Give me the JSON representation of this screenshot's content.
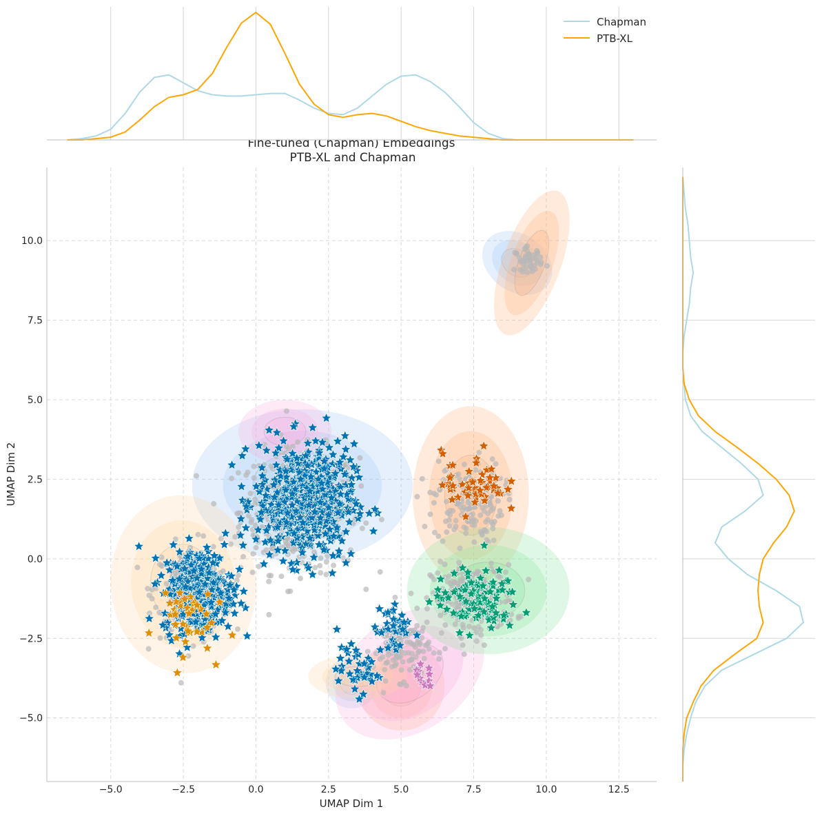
{
  "chart_data": {
    "type": "scatter",
    "title": "Fine-tuned (Chapman) Embeddings",
    "subtitle": "PTB-XL and Chapman",
    "xlabel": "UMAP Dim 1",
    "ylabel": "UMAP Dim 2",
    "xlim": [
      -7.2,
      13.8
    ],
    "ylim": [
      -7.0,
      12.3
    ],
    "x_ticks": [
      -5.0,
      -2.5,
      0.0,
      2.5,
      5.0,
      7.5,
      10.0,
      12.5
    ],
    "x_tick_labels": [
      "−5.0",
      "−2.5",
      "0.0",
      "2.5",
      "5.0",
      "7.5",
      "10.0",
      "12.5"
    ],
    "y_ticks": [
      -5.0,
      -2.5,
      0.0,
      2.5,
      5.0,
      7.5,
      10.0
    ],
    "y_tick_labels": [
      "−5.0",
      "−2.5",
      "0.0",
      "2.5",
      "5.0",
      "7.5",
      "10.0"
    ],
    "grid": true,
    "legend": {
      "placement": "top-right",
      "entries": [
        "Chapman",
        "PTB-XL"
      ]
    },
    "colors": {
      "Chapman": "#add8e6",
      "PTB-XL": "#ffa500",
      "grey_points": "#b8b8b8",
      "star_blue": "#0173b2",
      "star_orange": "#de8f05",
      "star_green": "#029e73",
      "star_red": "#d55e00",
      "star_pink": "#cc78bc",
      "grid": "#cfcfcf",
      "spine": "#bdbdbd",
      "text": "#262626"
    },
    "marginal_x": {
      "x": [
        -6.5,
        -6.0,
        -5.5,
        -5.0,
        -4.5,
        -4.0,
        -3.5,
        -3.0,
        -2.5,
        -2.0,
        -1.5,
        -1.0,
        -0.5,
        0.0,
        0.5,
        1.0,
        1.5,
        2.0,
        2.5,
        3.0,
        3.5,
        4.0,
        4.5,
        5.0,
        5.5,
        6.0,
        6.5,
        7.0,
        7.5,
        8.0,
        8.5,
        9.0,
        9.5,
        10.0,
        10.5,
        11.0,
        11.5,
        12.0,
        12.5,
        13.0
      ],
      "series": [
        {
          "name": "Chapman",
          "values": [
            0.0,
            0.01,
            0.03,
            0.08,
            0.2,
            0.36,
            0.47,
            0.49,
            0.43,
            0.37,
            0.34,
            0.33,
            0.33,
            0.34,
            0.35,
            0.35,
            0.3,
            0.24,
            0.2,
            0.19,
            0.24,
            0.33,
            0.42,
            0.48,
            0.49,
            0.44,
            0.36,
            0.25,
            0.13,
            0.05,
            0.01,
            0.0,
            0.0,
            0.0,
            0.0,
            0.0,
            0.0,
            0.0,
            0.0,
            0.0
          ]
        },
        {
          "name": "PTB-XL",
          "values": [
            0.0,
            0.0,
            0.01,
            0.02,
            0.06,
            0.15,
            0.25,
            0.32,
            0.34,
            0.38,
            0.5,
            0.7,
            0.88,
            0.96,
            0.87,
            0.65,
            0.42,
            0.27,
            0.19,
            0.17,
            0.19,
            0.2,
            0.18,
            0.14,
            0.1,
            0.07,
            0.05,
            0.03,
            0.02,
            0.01,
            0.0,
            0.0,
            0.0,
            0.0,
            0.0,
            0.0,
            0.0,
            0.0,
            0.0,
            0.0
          ]
        }
      ]
    },
    "marginal_y": {
      "y": [
        -7.0,
        -6.5,
        -6.0,
        -5.5,
        -5.0,
        -4.5,
        -4.0,
        -3.5,
        -3.0,
        -2.5,
        -2.0,
        -1.5,
        -1.0,
        -0.5,
        0.0,
        0.5,
        1.0,
        1.5,
        2.0,
        2.5,
        3.0,
        3.5,
        4.0,
        4.5,
        5.0,
        5.5,
        6.0,
        6.5,
        7.0,
        7.5,
        8.0,
        8.5,
        9.0,
        9.5,
        10.0,
        10.5,
        11.0,
        11.5,
        12.0
      ],
      "series": [
        {
          "name": "Chapman",
          "values": [
            0.0,
            0.0,
            0.01,
            0.03,
            0.06,
            0.1,
            0.17,
            0.3,
            0.55,
            0.8,
            0.93,
            0.9,
            0.72,
            0.5,
            0.35,
            0.25,
            0.3,
            0.48,
            0.62,
            0.58,
            0.45,
            0.3,
            0.15,
            0.06,
            0.02,
            0.01,
            0.0,
            0.0,
            0.01,
            0.03,
            0.05,
            0.06,
            0.08,
            0.06,
            0.05,
            0.04,
            0.02,
            0.01,
            0.0
          ]
        },
        {
          "name": "PTB-XL",
          "values": [
            0.0,
            0.0,
            0.0,
            0.01,
            0.03,
            0.08,
            0.14,
            0.24,
            0.4,
            0.57,
            0.62,
            0.59,
            0.58,
            0.59,
            0.62,
            0.7,
            0.8,
            0.86,
            0.82,
            0.72,
            0.58,
            0.42,
            0.25,
            0.12,
            0.05,
            0.01,
            0.0,
            0.0,
            0.0,
            0.0,
            0.0,
            0.0,
            0.0,
            0.0,
            0.0,
            0.0,
            0.0,
            0.0,
            0.0
          ]
        }
      ]
    },
    "density_regions": [
      {
        "color": "#a1c9f4",
        "cx": 1.6,
        "cy": 2.3,
        "rx": 3.8,
        "ry": 2.4,
        "rot": 0
      },
      {
        "color": "#a1c9f4",
        "cx": 9.0,
        "cy": 9.3,
        "rx": 1.3,
        "ry": 0.9,
        "rot": 35
      },
      {
        "color": "#a1c9f4",
        "cx": 3.3,
        "cy": -3.9,
        "rx": 0.9,
        "ry": 0.8,
        "rot": 0
      },
      {
        "color": "#ffb482",
        "cx": 7.4,
        "cy": 2.0,
        "rx": 2.0,
        "ry": 2.8,
        "rot": 0
      },
      {
        "color": "#ffb482",
        "cx": 9.5,
        "cy": 9.3,
        "rx": 1.0,
        "ry": 2.4,
        "rot": 20
      },
      {
        "color": "#ffb482",
        "cx": 5.0,
        "cy": -4.0,
        "rx": 1.5,
        "ry": 1.4,
        "rot": 0
      },
      {
        "color": "#fab0e4",
        "cx": 1.0,
        "cy": 4.0,
        "rx": 1.6,
        "ry": 1.0,
        "rot": 0
      },
      {
        "color": "#fab0e4",
        "cx": 5.3,
        "cy": -3.6,
        "rx": 2.8,
        "ry": 1.8,
        "rot": -35
      },
      {
        "color": "#8de5a1",
        "cx": 8.0,
        "cy": -1.0,
        "rx": 2.8,
        "ry": 2.0,
        "rot": 0
      },
      {
        "color": "#ffd8a8",
        "cx": -2.5,
        "cy": -0.8,
        "rx": 2.5,
        "ry": 2.8,
        "rot": -5
      },
      {
        "color": "#ffd8a8",
        "cx": 3.5,
        "cy": -3.7,
        "rx": 1.7,
        "ry": 0.7,
        "rot": 0
      }
    ],
    "point_clusters": [
      {
        "name": "grey",
        "color": "#b8b8b8",
        "cx": 1.5,
        "cy": 1.5,
        "sx": 1.7,
        "sy": 1.6,
        "n": 420
      },
      {
        "name": "grey",
        "color": "#b8b8b8",
        "cx": -2.2,
        "cy": -1.0,
        "sx": 1.1,
        "sy": 1.2,
        "n": 260
      },
      {
        "name": "grey",
        "color": "#b8b8b8",
        "cx": 7.3,
        "cy": 1.8,
        "sx": 1.0,
        "sy": 1.1,
        "n": 160
      },
      {
        "name": "grey",
        "color": "#b8b8b8",
        "cx": 7.5,
        "cy": -1.3,
        "sx": 1.2,
        "sy": 0.9,
        "n": 240
      },
      {
        "name": "grey",
        "color": "#b8b8b8",
        "cx": 9.4,
        "cy": 9.4,
        "sx": 0.4,
        "sy": 0.3,
        "n": 50
      },
      {
        "name": "grey",
        "color": "#b8b8b8",
        "cx": 5.0,
        "cy": -2.8,
        "sx": 0.8,
        "sy": 0.8,
        "n": 120
      },
      {
        "name": "blue-star",
        "color": "#0173b2",
        "cx": 1.7,
        "cy": 1.8,
        "sx": 1.4,
        "sy": 1.5,
        "n": 520
      },
      {
        "name": "blue-star",
        "color": "#0173b2",
        "cx": -2.0,
        "cy": -1.0,
        "sx": 1.0,
        "sy": 1.1,
        "n": 330
      },
      {
        "name": "blue-star",
        "color": "#0173b2",
        "cx": 3.5,
        "cy": -3.5,
        "sx": 0.6,
        "sy": 0.6,
        "n": 40
      },
      {
        "name": "blue-star",
        "color": "#0173b2",
        "cx": 4.7,
        "cy": -2.2,
        "sx": 0.5,
        "sy": 0.8,
        "n": 40
      },
      {
        "name": "orange-star",
        "color": "#de8f05",
        "cx": -2.6,
        "cy": -1.8,
        "sx": 0.9,
        "sy": 1.0,
        "n": 40
      },
      {
        "name": "green-star",
        "color": "#029e73",
        "cx": 7.6,
        "cy": -1.3,
        "sx": 1.2,
        "sy": 0.8,
        "n": 110
      },
      {
        "name": "red-star",
        "color": "#d55e00",
        "cx": 7.5,
        "cy": 2.4,
        "sx": 0.9,
        "sy": 0.8,
        "n": 60
      },
      {
        "name": "pink-star",
        "color": "#cc78bc",
        "cx": 5.7,
        "cy": -3.7,
        "sx": 0.3,
        "sy": 0.3,
        "n": 12
      }
    ]
  }
}
